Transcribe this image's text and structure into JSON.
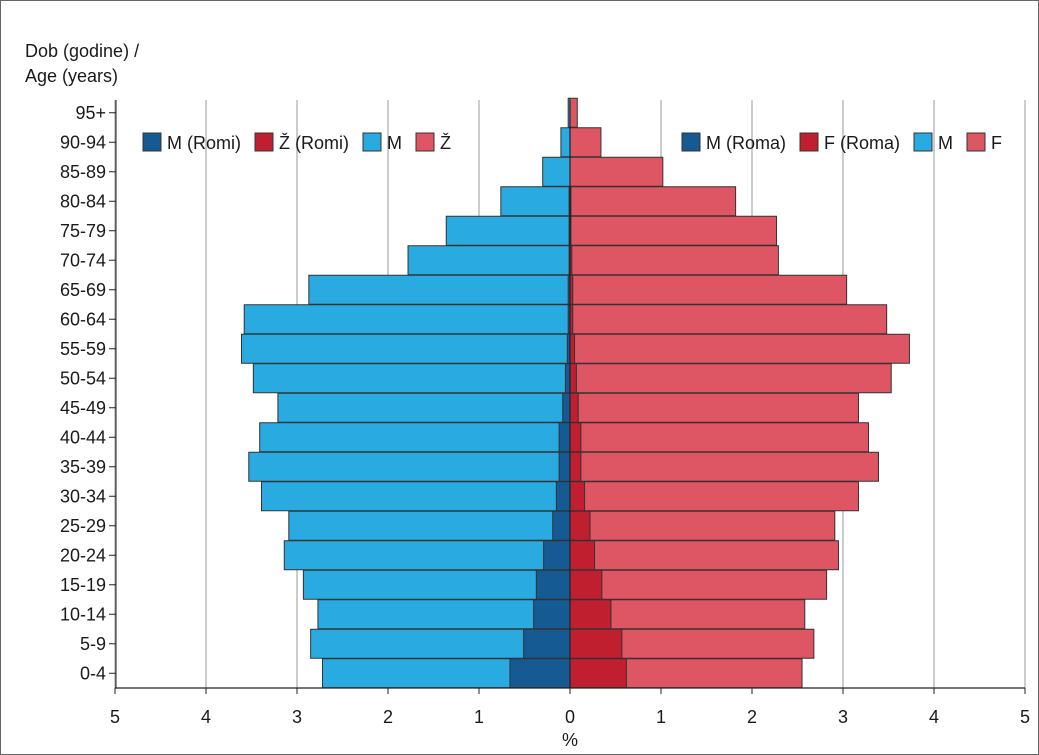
{
  "chart_data": {
    "type": "bar",
    "orientation": "horizontal-population-pyramid",
    "ylabel_line1": "Dob (godine) /",
    "ylabel_line2": "Age (years)",
    "xlabel": "%",
    "xlim": [
      -5,
      5
    ],
    "x_ticks": [
      -5,
      -4,
      -3,
      -2,
      -1,
      0,
      1,
      2,
      3,
      4,
      5
    ],
    "x_tick_labels": [
      "5",
      "4",
      "3",
      "2",
      "1",
      "0",
      "1",
      "2",
      "3",
      "4",
      "5"
    ],
    "grid": "vertical",
    "categories": [
      "0-4",
      "5-9",
      "10-14",
      "15-19",
      "20-24",
      "25-29",
      "30-34",
      "35-39",
      "40-44",
      "45-49",
      "50-54",
      "55-59",
      "60-64",
      "65-69",
      "70-74",
      "75-79",
      "80-84",
      "85-89",
      "90-94",
      "95+"
    ],
    "series": [
      {
        "name": "M",
        "side": "left",
        "color": "#29ABE2",
        "values": [
          2.72,
          2.85,
          2.77,
          2.93,
          3.14,
          3.09,
          3.39,
          3.53,
          3.41,
          3.21,
          3.48,
          3.61,
          3.58,
          2.87,
          1.78,
          1.36,
          0.76,
          0.3,
          0.1,
          0.02
        ]
      },
      {
        "name": "Ž",
        "side": "right",
        "color": "#DE5563",
        "values": [
          2.55,
          2.68,
          2.58,
          2.82,
          2.95,
          2.91,
          3.17,
          3.39,
          3.28,
          3.17,
          3.53,
          3.73,
          3.48,
          3.04,
          2.29,
          2.27,
          1.82,
          1.02,
          0.34,
          0.08
        ]
      },
      {
        "name": "M (Romi)",
        "side": "left",
        "color": "#155A93",
        "values": [
          0.66,
          0.51,
          0.4,
          0.37,
          0.29,
          0.19,
          0.15,
          0.12,
          0.12,
          0.08,
          0.05,
          0.03,
          0.02,
          0.02,
          0.01,
          0.01,
          0.01,
          0.0,
          0.0,
          0.0
        ]
      },
      {
        "name": "Ž (Romi)",
        "side": "right",
        "color": "#C01F2F",
        "values": [
          0.62,
          0.57,
          0.45,
          0.35,
          0.27,
          0.22,
          0.16,
          0.12,
          0.12,
          0.09,
          0.07,
          0.05,
          0.03,
          0.03,
          0.02,
          0.01,
          0.01,
          0.0,
          0.0,
          0.0
        ]
      }
    ],
    "legend_left": [
      {
        "label": "M (Romi)",
        "color": "#155A93"
      },
      {
        "label": "Ž (Romi)",
        "color": "#C01F2F"
      },
      {
        "label": "M",
        "color": "#29ABE2"
      },
      {
        "label": "Ž",
        "color": "#DE5563"
      }
    ],
    "legend_right": [
      {
        "label": "M (Roma)",
        "color": "#155A93"
      },
      {
        "label": "F (Roma)",
        "color": "#C01F2F"
      },
      {
        "label": "M",
        "color": "#29ABE2"
      },
      {
        "label": "F",
        "color": "#DE5563"
      }
    ],
    "legend_placement": "top",
    "colors": {
      "grid": "#9a9a9a",
      "axis": "#222222",
      "frame": "#666666",
      "bar_stroke": "#333333"
    }
  }
}
